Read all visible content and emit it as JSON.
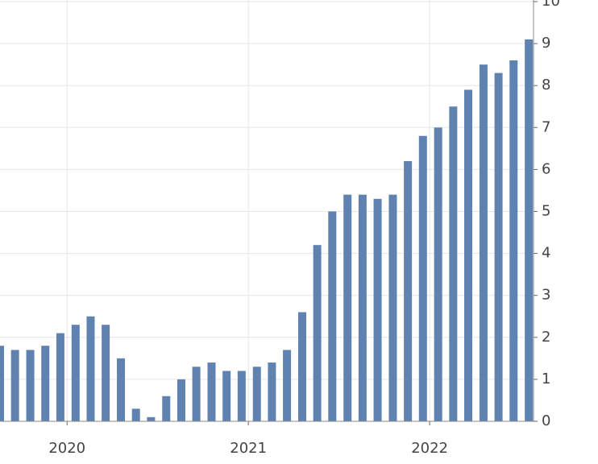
{
  "chart_data": {
    "type": "bar",
    "color": "#5f82b0",
    "x": [
      2019.63,
      2019.713,
      2019.797,
      2019.88,
      2019.963,
      2020.047,
      2020.13,
      2020.213,
      2020.297,
      2020.38,
      2020.463,
      2020.547,
      2020.63,
      2020.713,
      2020.797,
      2020.88,
      2020.963,
      2021.047,
      2021.13,
      2021.213,
      2021.297,
      2021.38,
      2021.463,
      2021.547,
      2021.63,
      2021.713,
      2021.797,
      2021.88,
      2021.963,
      2022.047,
      2022.13,
      2022.213,
      2022.297,
      2022.38,
      2022.463,
      2022.547
    ],
    "values": [
      1.8,
      1.7,
      1.7,
      1.8,
      2.1,
      2.3,
      2.5,
      2.3,
      1.5,
      0.3,
      0.1,
      0.6,
      1.0,
      1.3,
      1.4,
      1.2,
      1.2,
      1.3,
      1.4,
      1.7,
      2.6,
      4.2,
      5.0,
      5.4,
      5.4,
      5.3,
      5.4,
      6.2,
      6.8,
      7.0,
      7.5,
      7.9,
      8.5,
      8.3,
      8.6,
      9.1
    ],
    "xlim": [
      2019.63,
      2022.573
    ],
    "xticks": [
      2020,
      2021,
      2022
    ],
    "ylim": [
      0,
      10
    ],
    "yticks": [
      0,
      1,
      2,
      3,
      4,
      5,
      6,
      7,
      8,
      9,
      10
    ],
    "grid": true
  }
}
